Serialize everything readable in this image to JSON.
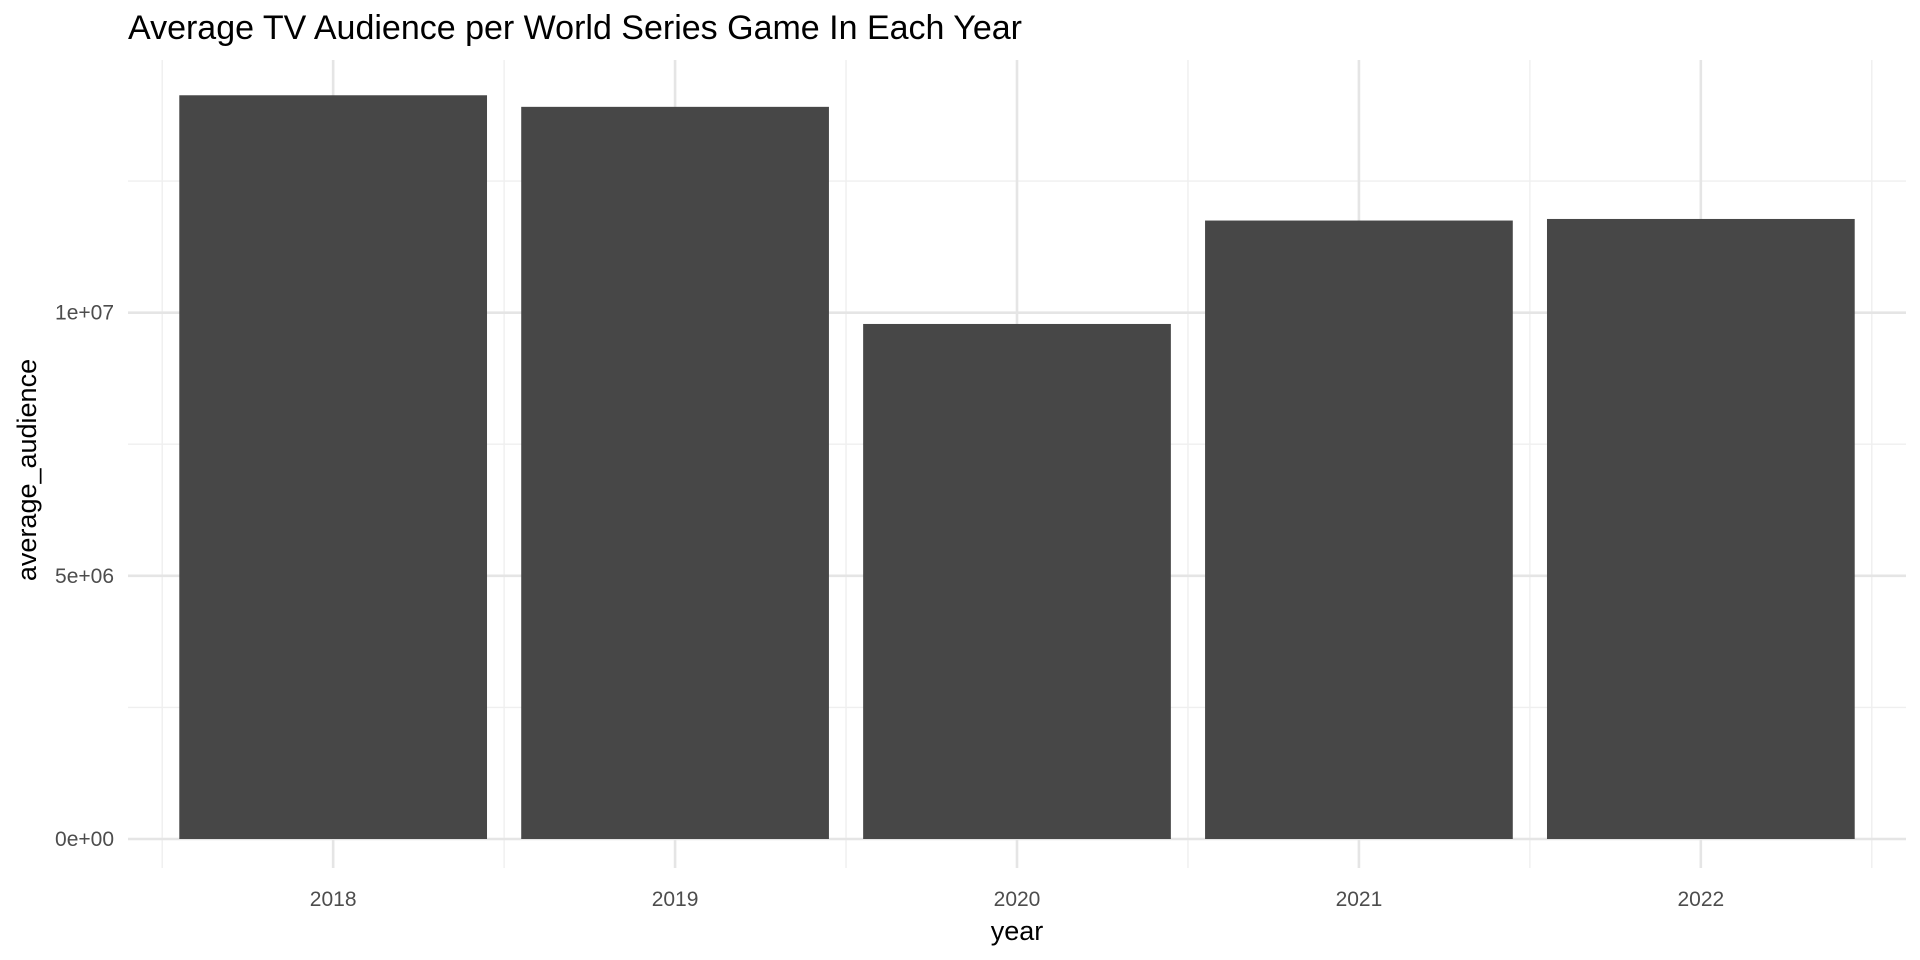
{
  "chart_data": {
    "type": "bar",
    "title": "Average TV Audience per World Series Game In Each Year",
    "xlabel": "year",
    "ylabel": "average_audience",
    "categories": [
      "2018",
      "2019",
      "2020",
      "2021",
      "2022"
    ],
    "values": [
      14130000,
      13910000,
      9785000,
      11750000,
      11780000
    ],
    "ylim": [
      0,
      14800000
    ],
    "y_ticks": [
      0,
      5000000,
      10000000
    ],
    "y_tick_labels": [
      "0e+00",
      "5e+06",
      "1e+07"
    ],
    "y_minor_ticks": [
      2500000,
      7500000,
      12500000
    ],
    "grid": true,
    "legend": "none",
    "bar_color": "#474747",
    "background_color": "#ffffff"
  }
}
